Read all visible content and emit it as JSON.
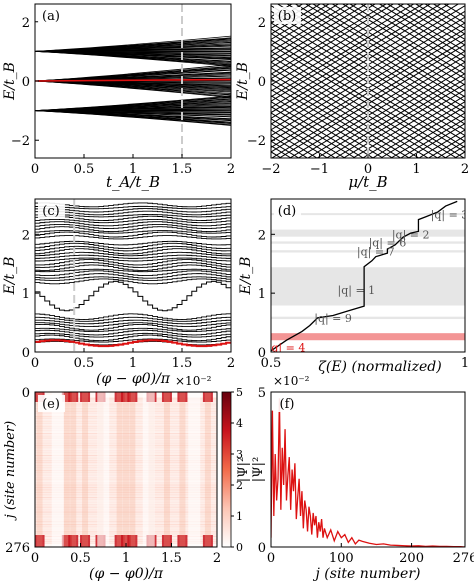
{
  "chart_data": [
    {
      "panel": "(a)",
      "type": "line",
      "xlabel": "t_A/t_B",
      "ylabel": "E/t_B",
      "xlim": [
        0,
        2
      ],
      "ylim": [
        -2.6,
        2.6
      ],
      "xticks": [
        "0",
        "0.5",
        "1",
        "1.5",
        "2"
      ],
      "yticks": [
        "−2",
        "0",
        "2"
      ],
      "dashed_marker_x": 1.5,
      "bands": [
        {
          "y0": 1.0,
          "y_end_min": 0.5,
          "y_end_max": 1.5
        },
        {
          "y0": -1.0,
          "y_end_min": -1.5,
          "y_end_max": -0.5
        },
        {
          "y0": 0.0,
          "y_end_min": -0.55,
          "y_end_max": 0.55
        }
      ],
      "highlight_series": {
        "color": "#dd1111",
        "x": [
          0,
          2
        ],
        "y": [
          0,
          0.05
        ]
      }
    },
    {
      "panel": "(b)",
      "type": "line",
      "xlabel": "μ/t_B",
      "ylabel": "E/t_B",
      "xlim": [
        -2,
        2
      ],
      "ylim": [
        -2.6,
        2.6
      ],
      "xticks": [
        "−2",
        "−1",
        "0",
        "1",
        "2"
      ],
      "yticks": [
        "−2",
        "0",
        "2"
      ],
      "dashed_marker_x": 0
    },
    {
      "panel": "(c)",
      "type": "line",
      "xlabel": "(φ − φ0)/π",
      "ylabel": "E/t_B",
      "xlim": [
        0,
        2
      ],
      "ylim": [
        0,
        2.6
      ],
      "xticks": [
        "0",
        "0.5",
        "1",
        "1.5",
        "2"
      ],
      "yticks": [
        "0",
        "1",
        "2"
      ],
      "dashed_marker_x": 0.4,
      "band_groups": [
        {
          "y_min": 0.15,
          "y_max": 0.6
        },
        {
          "y_min": 1.2,
          "y_max": 1.85
        },
        {
          "y_min": 1.95,
          "y_max": 2.5
        }
      ],
      "highlight_series": {
        "color": "#dd1111",
        "y_min": 0.1,
        "y_max": 0.2
      }
    },
    {
      "panel": "(d)",
      "type": "line",
      "xlabel": "ζ(E) (normalized)",
      "ylabel": "E/t_B",
      "xlim": [
        0.5,
        1.0
      ],
      "ylim": [
        0,
        2.6
      ],
      "xticks": [
        "0.5",
        "1"
      ],
      "yticks": [
        "0",
        "1",
        "2"
      ],
      "staircase": {
        "x": [
          0.5,
          0.54,
          0.58,
          0.6,
          0.62,
          0.66,
          0.7,
          0.74,
          0.74,
          0.76,
          0.77,
          0.8,
          0.8,
          0.82,
          0.84,
          0.86,
          0.88,
          0.88,
          0.9,
          0.93,
          0.95,
          0.98
        ],
        "y": [
          0.02,
          0.2,
          0.35,
          0.45,
          0.58,
          0.62,
          0.7,
          0.78,
          1.45,
          1.55,
          1.62,
          1.68,
          1.75,
          1.82,
          1.95,
          2.02,
          2.05,
          2.25,
          2.3,
          2.38,
          2.48,
          2.56
        ]
      },
      "gaps": [
        {
          "label": "|q| = 3",
          "y": [
            2.33,
            2.36
          ]
        },
        {
          "label": "|q| = 2",
          "y": [
            1.96,
            2.08
          ]
        },
        {
          "label": "|q| = 6",
          "y": [
            1.84,
            1.88
          ]
        },
        {
          "label": "|q| = 7",
          "y": [
            1.69,
            1.73
          ]
        },
        {
          "label": "|q| = 1",
          "y": [
            0.79,
            1.44
          ]
        },
        {
          "label": "|q| = 9",
          "y": [
            0.56,
            0.6
          ]
        },
        {
          "label": "|q| = 4",
          "y": [
            0.2,
            0.32
          ]
        }
      ],
      "highlight_gap": "|q| = 4"
    },
    {
      "panel": "(e)",
      "type": "heatmap",
      "xlabel": "(φ − φ0)/π",
      "ylabel": "j (site number)",
      "xlim": [
        0,
        2
      ],
      "ylim": [
        276,
        0
      ],
      "xticks": [
        "0",
        "0.5",
        "1",
        "1.5",
        "2"
      ],
      "yticks": [
        "0",
        "276"
      ],
      "colorbar": {
        "label": "|Ψ|²",
        "range": [
          0,
          5
        ],
        "ticks": [
          "0",
          "1",
          "2",
          "3",
          "4",
          "5"
        ],
        "exponent": "×10⁻²",
        "colors": [
          "#ffffff",
          "#fcc5b4",
          "#f26b4a",
          "#c8131d",
          "#67000d"
        ]
      },
      "bright_edge_columns_x": [
        0.05,
        0.35,
        0.42,
        0.55,
        0.72,
        0.93,
        1.0,
        1.07,
        1.28,
        1.45,
        1.62,
        1.9
      ]
    },
    {
      "panel": "(f)",
      "type": "line",
      "xlabel": "j (site number)",
      "ylabel": "|Ψ|²",
      "xlim": [
        0,
        276
      ],
      "ylim": [
        0,
        5
      ],
      "xticks": [
        "0",
        "100",
        "200",
        "276"
      ],
      "yticks": [
        "0",
        "5"
      ],
      "exponent": "×10⁻²",
      "series": [
        {
          "color": "#dd1111",
          "x": [
            0,
            2,
            4,
            6,
            8,
            10,
            12,
            14,
            16,
            18,
            20,
            22,
            24,
            26,
            28,
            30,
            32,
            34,
            36,
            38,
            40,
            42,
            44,
            46,
            48,
            50,
            52,
            54,
            56,
            58,
            60,
            62,
            64,
            66,
            68,
            70,
            72,
            74,
            76,
            78,
            80,
            85,
            90,
            95,
            100,
            105,
            110,
            115,
            120,
            125,
            130,
            140,
            150,
            160,
            170,
            180,
            190,
            200,
            210,
            220,
            230,
            240,
            250,
            260,
            270,
            276
          ],
          "y": [
            0.3,
            4.4,
            1.0,
            3.0,
            1.5,
            2.2,
            4.8,
            1.2,
            3.2,
            2.0,
            3.8,
            1.5,
            2.3,
            2.9,
            1.2,
            2.5,
            1.8,
            2.7,
            0.9,
            1.6,
            2.2,
            1.0,
            1.8,
            0.6,
            1.5,
            1.2,
            0.5,
            1.3,
            1.0,
            0.4,
            1.1,
            0.7,
            1.0,
            0.3,
            0.8,
            0.5,
            0.9,
            0.3,
            0.6,
            0.45,
            0.3,
            0.55,
            0.2,
            0.5,
            0.3,
            0.4,
            0.15,
            0.3,
            0.1,
            0.22,
            0.18,
            0.12,
            0.08,
            0.1,
            0.06,
            0.05,
            0.04,
            0.03,
            0.04,
            0.02,
            0.03,
            0.02,
            0.02,
            0.01,
            0.01,
            0.0
          ]
        }
      ]
    }
  ]
}
